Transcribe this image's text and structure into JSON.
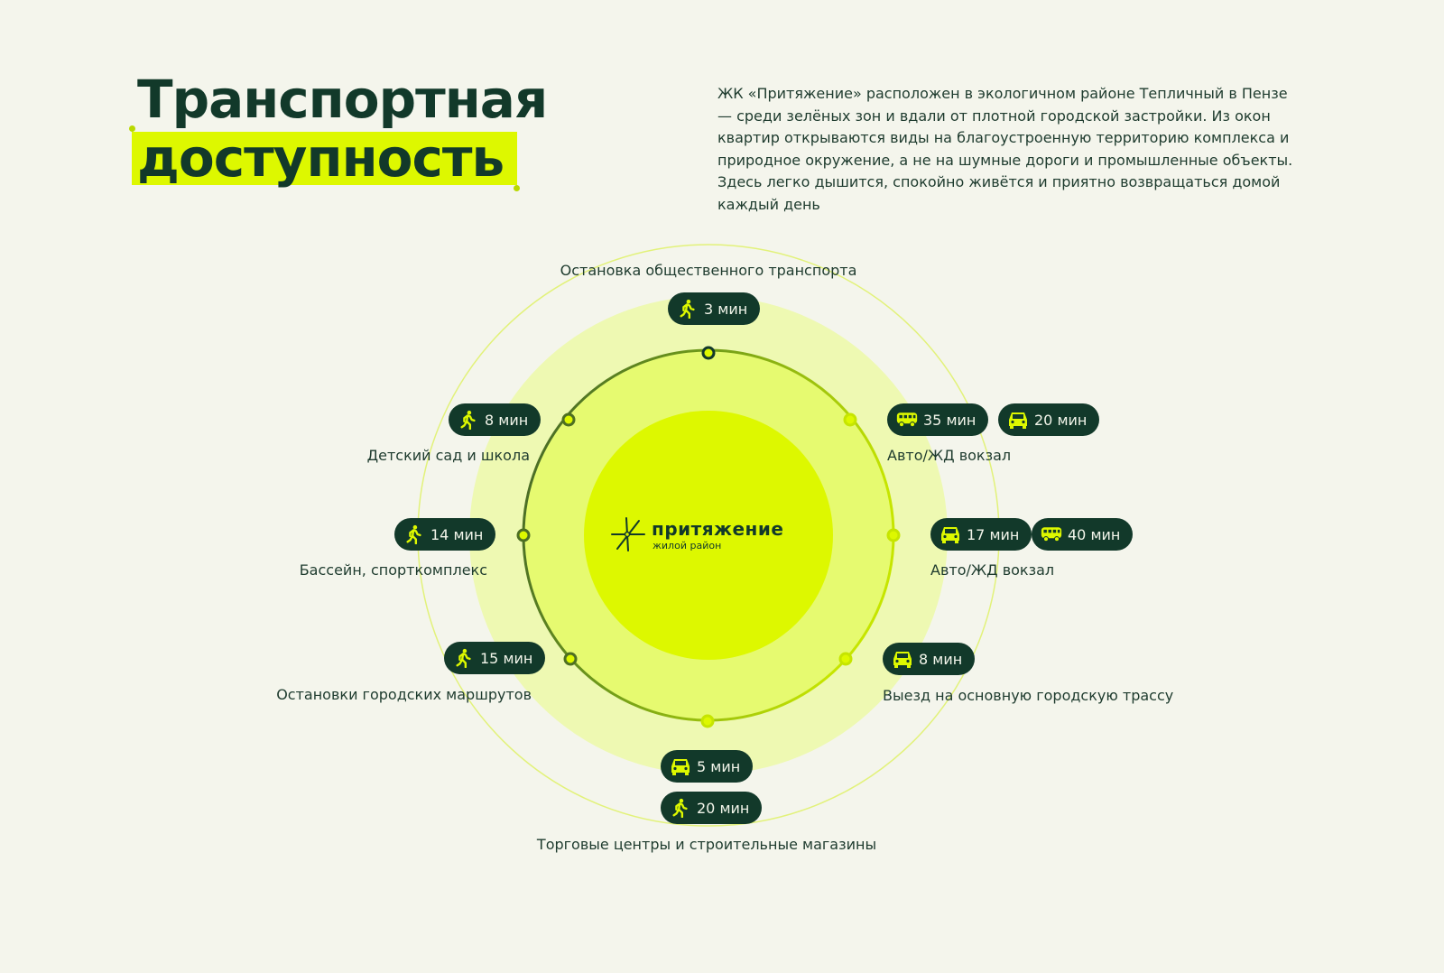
{
  "title": {
    "line1": "Транспортная",
    "line2": "доступность"
  },
  "description": "ЖК «Притяжение» расположен в экологичном районе Тепличный в Пензе — среди зелёных зон и вдали от плотной городской застройки. Из окон квартир открываются виды на благоустроенную территорию комплекса и природное окружение, а не на шумные дороги и промышленные объекты. Здесь легко дышится, спокойно живётся и приятно возвращаться домой каждый день",
  "logo": {
    "name": "притяжение",
    "subtitle": "жилой район"
  },
  "colors": {
    "dark": "#12392a",
    "accent": "#ddf800",
    "background": "#f4f5ec"
  },
  "destinations": [
    {
      "label": "Остановка общественного транспорта",
      "times": [
        {
          "icon": "walk-icon",
          "text": "3 мин"
        }
      ]
    },
    {
      "label": "Детский сад и школа",
      "times": [
        {
          "icon": "walk-icon",
          "text": "8 мин"
        }
      ]
    },
    {
      "label": "Бассейн, спорткомплекс",
      "times": [
        {
          "icon": "walk-icon",
          "text": "14 мин"
        }
      ]
    },
    {
      "label": "Остановки городских маршрутов",
      "times": [
        {
          "icon": "walk-icon",
          "text": "15 мин"
        }
      ]
    },
    {
      "label": "Авто/ЖД вокзал",
      "times": [
        {
          "icon": "bus-icon",
          "text": "35 мин"
        },
        {
          "icon": "car-icon",
          "text": "20 мин"
        }
      ]
    },
    {
      "label": "Авто/ЖД вокзал",
      "times": [
        {
          "icon": "car-icon",
          "text": "17 мин"
        },
        {
          "icon": "bus-icon",
          "text": "40 мин"
        }
      ]
    },
    {
      "label": "Выезд на основную городскую трассу",
      "times": [
        {
          "icon": "car-icon",
          "text": "8 мин"
        }
      ]
    },
    {
      "label": "Торговые центры и строительные магазины",
      "times": [
        {
          "icon": "car-icon",
          "text": "5 мин"
        },
        {
          "icon": "walk-icon",
          "text": "20 мин"
        }
      ]
    }
  ]
}
